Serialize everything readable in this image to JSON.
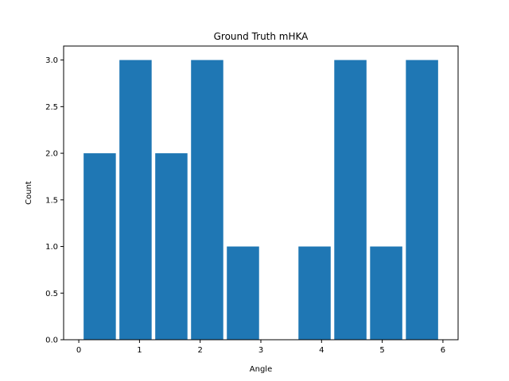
{
  "chart_data": {
    "type": "bar",
    "title": "Ground Truth mHKA",
    "xlabel": "Angle",
    "ylabel": "Count",
    "bins": [
      {
        "start": 0.05,
        "end": 0.64,
        "count": 2
      },
      {
        "start": 0.64,
        "end": 1.23,
        "count": 3
      },
      {
        "start": 1.23,
        "end": 1.82,
        "count": 2
      },
      {
        "start": 1.82,
        "end": 2.41,
        "count": 3
      },
      {
        "start": 2.41,
        "end": 3.0,
        "count": 1
      },
      {
        "start": 3.0,
        "end": 3.59,
        "count": 0
      },
      {
        "start": 3.59,
        "end": 4.18,
        "count": 1
      },
      {
        "start": 4.18,
        "end": 4.77,
        "count": 3
      },
      {
        "start": 4.77,
        "end": 5.36,
        "count": 1
      },
      {
        "start": 5.36,
        "end": 5.95,
        "count": 3
      }
    ],
    "xlim": [
      -0.25,
      6.25
    ],
    "ylim": [
      0,
      3.15
    ],
    "xticks": [
      0,
      1,
      2,
      3,
      4,
      5,
      6
    ],
    "xtick_labels": [
      "0",
      "1",
      "2",
      "3",
      "4",
      "5",
      "6"
    ],
    "yticks": [
      0,
      0.5,
      1,
      1.5,
      2,
      2.5,
      3
    ],
    "ytick_labels": [
      "0.0",
      "0.5",
      "1.0",
      "1.5",
      "2.0",
      "2.5",
      "3.0"
    ],
    "grid": false,
    "bar_color": "#1f77b4"
  }
}
